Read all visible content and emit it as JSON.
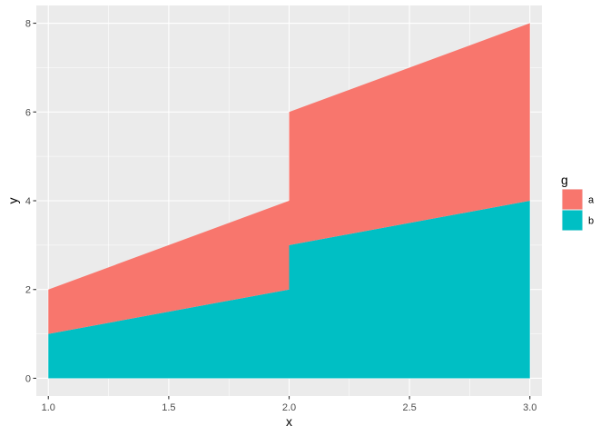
{
  "chart_data": {
    "type": "area",
    "stacked": true,
    "x": [
      1.0,
      2.0,
      2.0,
      3.0
    ],
    "series": [
      {
        "name": "a",
        "color": "#F8766D",
        "values": [
          1,
          2,
          3,
          4
        ]
      },
      {
        "name": "b",
        "color": "#00BFC4",
        "values": [
          1,
          2,
          3,
          4
        ]
      }
    ],
    "xlabel": "x",
    "ylabel": "y",
    "xlim": [
      0.95,
      3.05
    ],
    "ylim": [
      -0.4,
      8.4
    ],
    "xticks": [
      1.0,
      1.5,
      2.0,
      2.5,
      3.0
    ],
    "xtick_labels": [
      "1.0",
      "1.5",
      "2.0",
      "2.5",
      "3.0"
    ],
    "yticks": [
      0,
      2,
      4,
      6,
      8
    ],
    "ytick_labels": [
      "0",
      "2",
      "4",
      "6",
      "8"
    ],
    "grid": true,
    "panel_background": "#EBEBEB",
    "legend": {
      "title": "g",
      "position": "right",
      "entries": [
        "a",
        "b"
      ]
    }
  }
}
